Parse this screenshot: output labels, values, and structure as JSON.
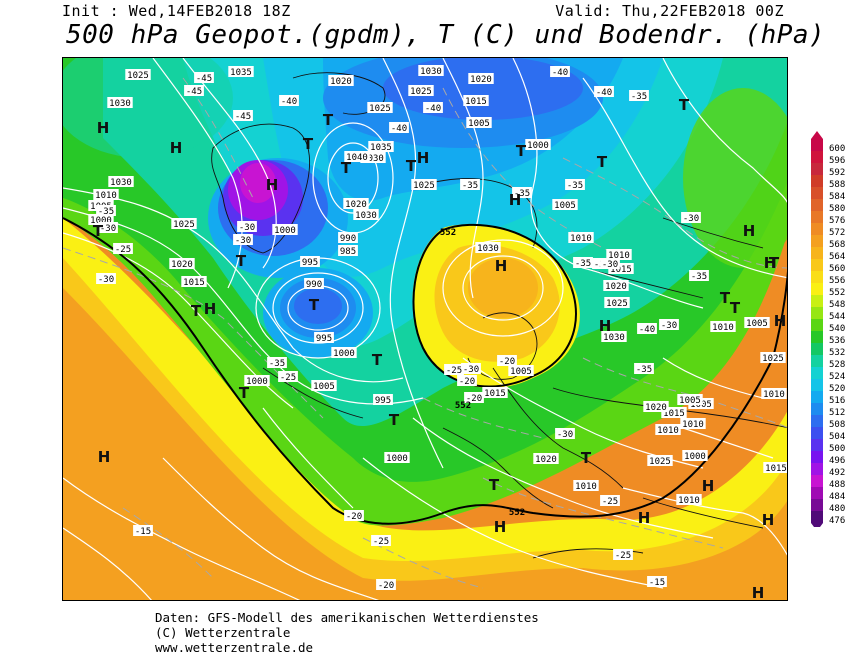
{
  "header": {
    "init": "Init : Wed,14FEB2018 18Z",
    "valid": "Valid: Thu,22FEB2018 00Z",
    "title": "500 hPa Geopot.(gpdm), T (C) und Bodendr. (hPa)"
  },
  "legend": {
    "values": [
      "600",
      "596",
      "592",
      "588",
      "584",
      "580",
      "576",
      "572",
      "568",
      "564",
      "560",
      "556",
      "552",
      "548",
      "544",
      "540",
      "536",
      "532",
      "528",
      "524",
      "520",
      "516",
      "512",
      "508",
      "504",
      "500",
      "496",
      "492",
      "488",
      "484",
      "480",
      "476"
    ],
    "colors": [
      "#c80848",
      "#d0143c",
      "#c8283c",
      "#d03c28",
      "#d8502a",
      "#e0642a",
      "#e87828",
      "#ef8c24",
      "#f4a020",
      "#f7b41c",
      "#f9c81a",
      "#fade18",
      "#faf014",
      "#c8f014",
      "#96e614",
      "#5ad614",
      "#28c828",
      "#14c864",
      "#14d2a0",
      "#14d2d2",
      "#14c4e8",
      "#14aaf0",
      "#1e8cf0",
      "#2d6ef0",
      "#3c50f0",
      "#5a32f0",
      "#7814f0",
      "#a014e6",
      "#c814d2",
      "#a00ab4",
      "#780a96",
      "#500a78"
    ]
  },
  "map": {
    "geopot_552_labels": [
      "552",
      "552",
      "552"
    ],
    "pressure_labels": [
      "1025",
      "1035",
      "1030",
      "1020",
      "1025",
      "1030",
      "1025",
      "1020",
      "1015",
      "1030",
      "1025",
      "1015",
      "1010",
      "1005",
      "1005",
      "1000",
      "1000",
      "1010",
      "1005",
      "1000",
      "1020",
      "1035",
      "1030",
      "1040",
      "1020",
      "1030",
      "1025",
      "990",
      "985",
      "995",
      "990",
      "995",
      "1000",
      "1000",
      "1005",
      "995",
      "1000",
      "1030",
      "1010",
      "1015",
      "1020",
      "1025",
      "1030",
      "1015",
      "1005",
      "1015",
      "1010",
      "1020",
      "1025",
      "1020",
      "1010",
      "1005",
      "1010",
      "1010",
      "1005",
      "1000",
      "1010",
      "1010",
      "1025",
      "1015",
      "1005"
    ],
    "temp_labels": [
      "-45",
      "-45",
      "-45",
      "-40",
      "-40",
      "-40",
      "-35",
      "-35",
      "-35",
      "-40",
      "-40",
      "-35",
      "-35",
      "-35",
      "-30",
      "-30",
      "-40",
      "-35",
      "-30",
      "-25",
      "-25",
      "-35",
      "-30",
      "-30",
      "-25",
      "-30",
      "-30",
      "-35",
      "-25",
      "-20",
      "-15",
      "-25",
      "-20",
      "-15",
      "-30",
      "-25",
      "-20",
      "-20",
      "-20",
      "-30",
      "-35"
    ],
    "highs": [
      "H",
      "H",
      "H",
      "H",
      "H",
      "H",
      "H",
      "H",
      "H",
      "H",
      "H",
      "H",
      "H",
      "H",
      "H",
      "H",
      "H"
    ],
    "lows": [
      "T",
      "T",
      "T",
      "T",
      "T",
      "T",
      "T",
      "T",
      "T",
      "T",
      "T",
      "T",
      "T",
      "T",
      "T",
      "T",
      "T",
      "T",
      "T"
    ]
  },
  "footer": {
    "line1": "Daten: GFS-Modell des amerikanischen Wetterdienstes",
    "line2": "(C) Wetterzentrale",
    "line3": "www.wetterzentrale.de"
  }
}
